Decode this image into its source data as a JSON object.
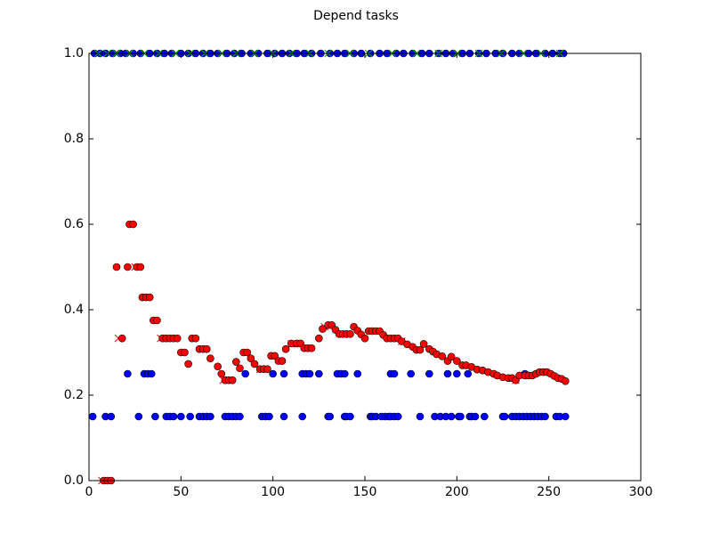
{
  "chart_data": {
    "type": "scatter",
    "title": "Depend tasks",
    "xlim": [
      0,
      300
    ],
    "ylim": [
      0,
      1
    ],
    "xticks": [
      0,
      50,
      100,
      150,
      200,
      250,
      300
    ],
    "yticks": [
      {
        "value": 0,
        "label": "0.0"
      },
      0.2,
      0.4,
      0.6,
      0.8,
      {
        "value": 1,
        "label": "1.0"
      }
    ],
    "series": [
      {
        "color": "#0000ff",
        "marker": "o",
        "x": [
          3,
          6,
          9,
          13,
          17,
          20,
          24,
          28,
          33,
          37,
          41,
          45,
          50,
          54,
          58,
          62,
          66,
          70,
          75,
          79,
          83,
          88,
          92,
          97,
          101,
          105,
          109,
          113,
          117,
          121,
          126,
          131,
          135,
          139,
          144,
          148,
          153,
          158,
          162,
          167,
          171,
          176,
          181,
          185,
          190,
          194,
          198,
          203,
          207,
          212,
          216,
          221,
          225,
          230,
          234,
          239,
          243,
          248,
          252,
          256,
          258
        ],
        "values": [
          1,
          1,
          1,
          1,
          1,
          1,
          1,
          1,
          1,
          1,
          1,
          1,
          1,
          1,
          1,
          1,
          1,
          1,
          1,
          1,
          1,
          1,
          1,
          1,
          1,
          1,
          1,
          1,
          1,
          1,
          1,
          1,
          1,
          1,
          1,
          1,
          1,
          1,
          1,
          1,
          1,
          1,
          1,
          1,
          1,
          1,
          1,
          1,
          1,
          1,
          1,
          1,
          1,
          1,
          1,
          1,
          1,
          1,
          1,
          1,
          1
        ]
      },
      {
        "color": "#0000ff",
        "marker": "o",
        "x": [
          21,
          30,
          32,
          34,
          85,
          100,
          106,
          116,
          118,
          120,
          125,
          135,
          137,
          139,
          146,
          164,
          166,
          175,
          185,
          195,
          200,
          206,
          220,
          237,
          243
        ],
        "values": [
          0.25,
          0.25,
          0.25,
          0.25,
          0.25,
          0.25,
          0.25,
          0.25,
          0.25,
          0.25,
          0.25,
          0.25,
          0.25,
          0.25,
          0.25,
          0.25,
          0.25,
          0.25,
          0.25,
          0.25,
          0.25,
          0.25,
          0.25,
          0.25,
          0.25
        ]
      },
      {
        "color": "#0000ff",
        "marker": "o",
        "x": [
          2,
          9,
          12,
          27,
          36,
          42,
          44,
          46,
          50,
          55,
          60,
          62,
          64,
          66,
          74,
          76,
          78,
          80,
          82,
          94,
          96,
          98,
          106,
          116,
          130,
          131,
          139,
          140,
          142,
          153,
          154,
          156,
          159,
          161,
          163,
          164,
          166,
          168,
          180,
          188,
          191,
          194,
          197,
          201,
          202,
          207,
          208,
          210,
          215,
          225,
          226,
          230,
          232,
          234,
          236,
          238,
          240,
          242,
          244,
          246,
          248,
          254,
          256,
          259
        ],
        "values": [
          0.15,
          0.15,
          0.15,
          0.15,
          0.15,
          0.15,
          0.15,
          0.15,
          0.15,
          0.15,
          0.15,
          0.15,
          0.15,
          0.15,
          0.15,
          0.15,
          0.15,
          0.15,
          0.15,
          0.15,
          0.15,
          0.15,
          0.15,
          0.15,
          0.15,
          0.15,
          0.15,
          0.15,
          0.15,
          0.15,
          0.15,
          0.15,
          0.15,
          0.15,
          0.15,
          0.15,
          0.15,
          0.15,
          0.15,
          0.15,
          0.15,
          0.15,
          0.15,
          0.15,
          0.15,
          0.15,
          0.15,
          0.15,
          0.15,
          0.15,
          0.15,
          0.15,
          0.15,
          0.15,
          0.15,
          0.15,
          0.15,
          0.15,
          0.15,
          0.15,
          0.15,
          0.15,
          0.15,
          0.15
        ]
      },
      {
        "color": "#00aa00",
        "marker": "x",
        "x": [
          5,
          10,
          15,
          22,
          30,
          38,
          47,
          55,
          63,
          72,
          80,
          90,
          100,
          110,
          120,
          130,
          142,
          152,
          165,
          178,
          190,
          200,
          212,
          224,
          236,
          246,
          256
        ],
        "values": [
          1,
          1,
          1,
          1,
          1,
          1,
          1,
          1,
          1,
          1,
          1,
          1,
          1,
          1,
          1,
          1,
          1,
          1,
          1,
          1,
          1,
          1,
          1,
          1,
          1,
          1,
          1
        ]
      },
      {
        "color": "#ff0000",
        "marker": "x",
        "x": [
          7,
          16,
          25,
          39,
          73,
          93,
          110,
          128,
          170,
          232
        ],
        "values": [
          0,
          0.333,
          0.5,
          0.333,
          0.235,
          0.261,
          0.32,
          0.36,
          0.326,
          0.235
        ]
      },
      {
        "color": "#ff0000",
        "marker": "o",
        "x": [
          8,
          10,
          12,
          15,
          18,
          21,
          22,
          24,
          26,
          28,
          29,
          31,
          33,
          35,
          37,
          40,
          42,
          44,
          46,
          48,
          50,
          52,
          54,
          56,
          58,
          60,
          62,
          64,
          66,
          70,
          72,
          74,
          76,
          78,
          80,
          82,
          84,
          86,
          88,
          90,
          93,
          95,
          97,
          99,
          101,
          103,
          105,
          107,
          110,
          113,
          115,
          117,
          119,
          121,
          125,
          127,
          130,
          132,
          134,
          136,
          138,
          140,
          142,
          144,
          146,
          148,
          150,
          152,
          154,
          156,
          158,
          160,
          162,
          164,
          166,
          168,
          170,
          173,
          176,
          178,
          180,
          182,
          185,
          187,
          189,
          192,
          195,
          197,
          200,
          203,
          205,
          208,
          211,
          214,
          217,
          220,
          222,
          225,
          228,
          230,
          232,
          234,
          237,
          239,
          241,
          243,
          245,
          247,
          249,
          251,
          253,
          255,
          257,
          259
        ],
        "values": [
          0,
          0,
          0,
          0.5,
          0.333,
          0.5,
          0.6,
          0.6,
          0.5,
          0.5,
          0.429,
          0.429,
          0.429,
          0.375,
          0.375,
          0.333,
          0.333,
          0.333,
          0.333,
          0.333,
          0.3,
          0.3,
          0.273,
          0.333,
          0.333,
          0.308,
          0.308,
          0.308,
          0.286,
          0.267,
          0.25,
          0.235,
          0.235,
          0.235,
          0.278,
          0.263,
          0.3,
          0.3,
          0.286,
          0.273,
          0.261,
          0.261,
          0.261,
          0.292,
          0.292,
          0.28,
          0.28,
          0.308,
          0.321,
          0.321,
          0.321,
          0.31,
          0.31,
          0.31,
          0.333,
          0.355,
          0.364,
          0.364,
          0.353,
          0.343,
          0.343,
          0.343,
          0.343,
          0.36,
          0.351,
          0.342,
          0.333,
          0.35,
          0.35,
          0.35,
          0.35,
          0.341,
          0.333,
          0.333,
          0.333,
          0.333,
          0.326,
          0.319,
          0.313,
          0.306,
          0.306,
          0.32,
          0.308,
          0.302,
          0.296,
          0.291,
          0.28,
          0.29,
          0.28,
          0.27,
          0.27,
          0.266,
          0.26,
          0.258,
          0.254,
          0.25,
          0.246,
          0.242,
          0.24,
          0.24,
          0.235,
          0.246,
          0.246,
          0.246,
          0.246,
          0.25,
          0.254,
          0.254,
          0.254,
          0.25,
          0.245,
          0.24,
          0.238,
          0.233
        ]
      }
    ]
  }
}
